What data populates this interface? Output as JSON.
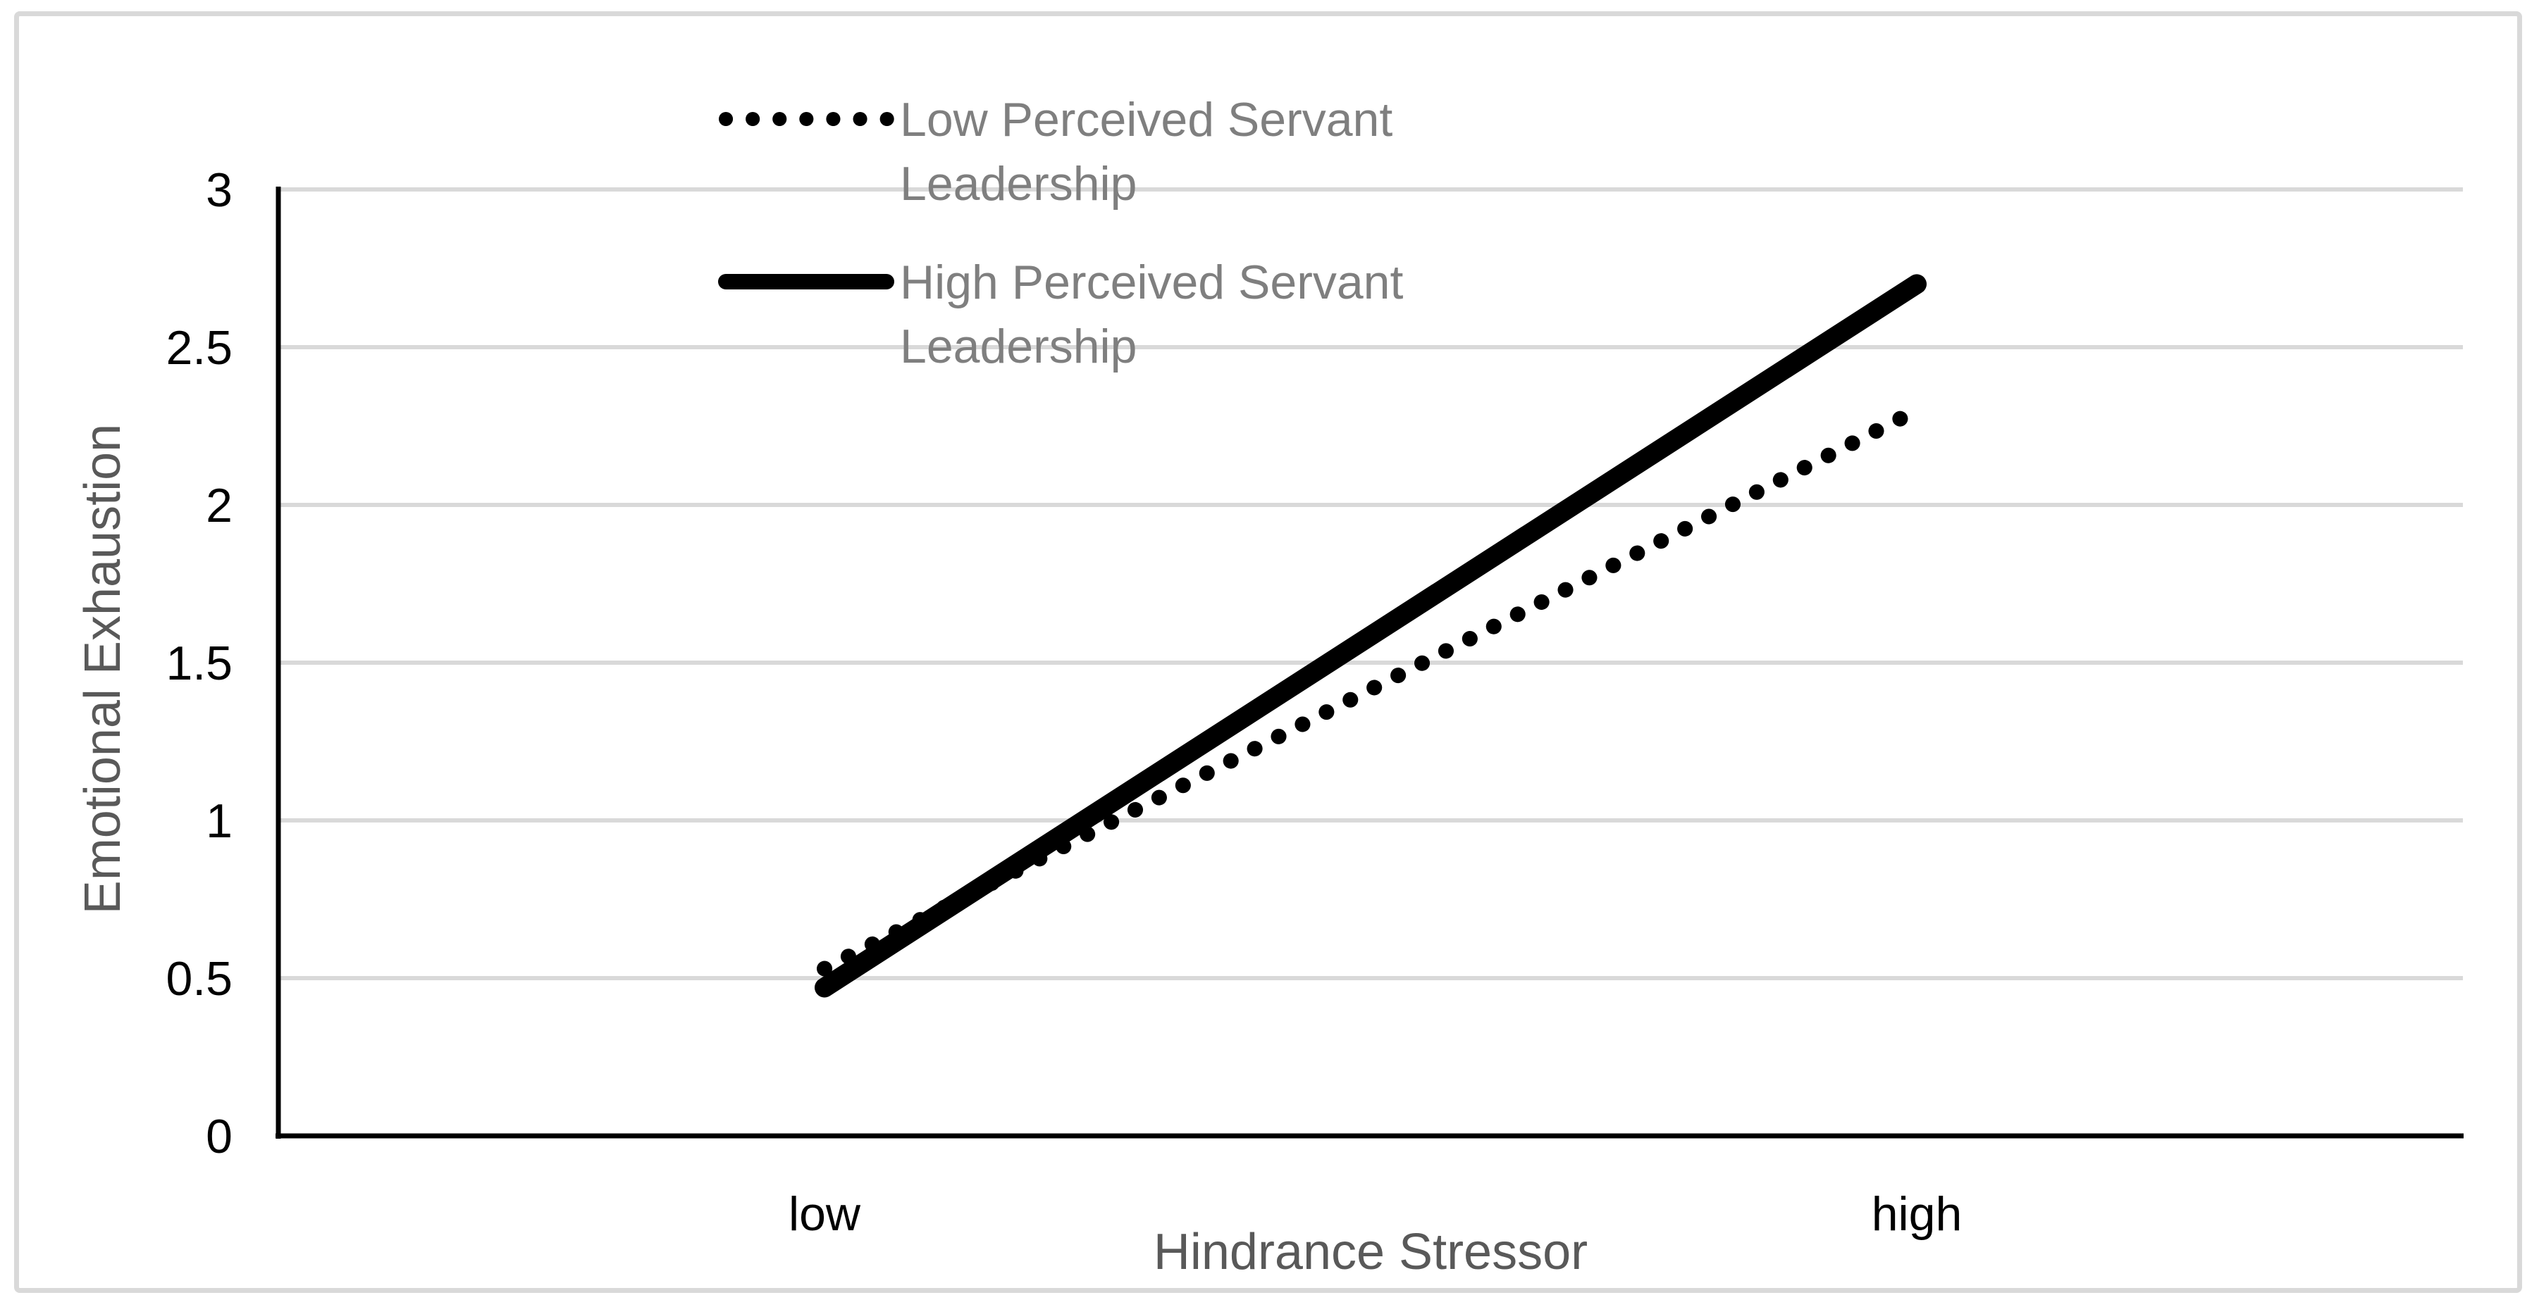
{
  "figure": {
    "background": "#ffffff",
    "border_color": "#d9d9d9"
  },
  "chart_data": {
    "type": "line",
    "categories": [
      "low",
      "high"
    ],
    "series": [
      {
        "name": "Low Perceived Servant Leadership",
        "style": "dotted",
        "color": "#000000",
        "values": [
          0.53,
          2.3
        ]
      },
      {
        "name": "High Perceived Servant Leadership",
        "style": "solid",
        "color": "#000000",
        "values": [
          0.47,
          2.7
        ]
      }
    ],
    "title": "",
    "xlabel": "Hindrance Stressor",
    "ylabel": "Emotional Exhaustion",
    "ylim": [
      0,
      3
    ],
    "yticks": [
      "0",
      "0.5",
      "1",
      "1.5",
      "2",
      "2.5",
      "3"
    ],
    "grid": true,
    "gridline_color": "#d9d9d9",
    "axis_line_color": "#000000",
    "legend_position": "top-center"
  },
  "legend": {
    "text_color": "#7f7f7f",
    "entries": [
      {
        "style": "dotted",
        "lines": [
          "Low Perceived Servant",
          "Leadership"
        ]
      },
      {
        "style": "solid",
        "lines": [
          "High Perceived Servant",
          "Leadership"
        ]
      }
    ]
  },
  "axes": {
    "title_color": "#595959",
    "tick_color": "#000000"
  }
}
